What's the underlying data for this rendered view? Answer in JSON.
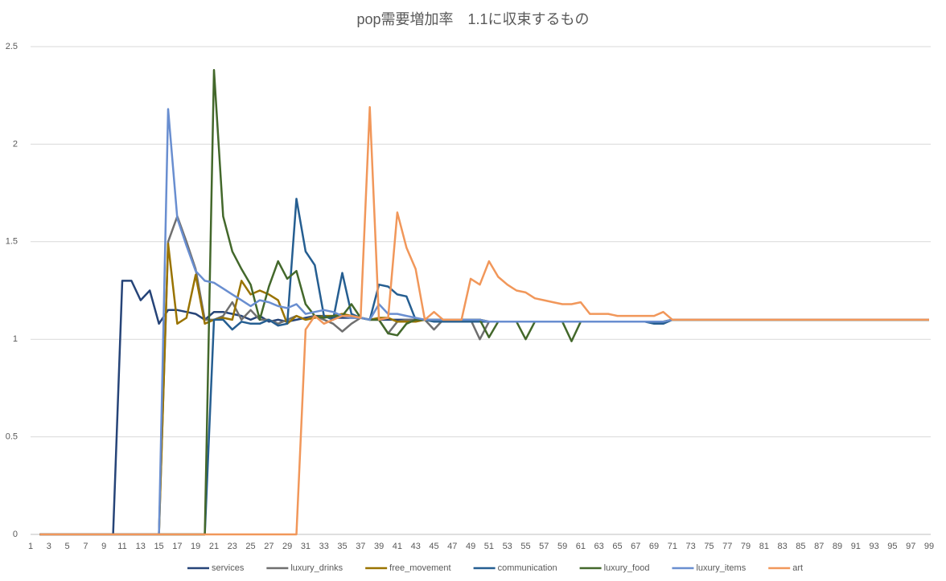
{
  "chart_data": {
    "type": "line",
    "title": "pop需要増加率　1.1に収束するもの",
    "categories": [
      1,
      null,
      3,
      null,
      5,
      null,
      7,
      null,
      9,
      null,
      11,
      null,
      13,
      null,
      15,
      null,
      17,
      null,
      19,
      null,
      21,
      null,
      23,
      null,
      25,
      null,
      27,
      null,
      29,
      null,
      31,
      null,
      33,
      null,
      35,
      null,
      37,
      null,
      39,
      null,
      41,
      null,
      43,
      null,
      45,
      null,
      47,
      null,
      49,
      null,
      51,
      null,
      53,
      null,
      55,
      null,
      57,
      null,
      59,
      null,
      61,
      null,
      63,
      null,
      65,
      null,
      67,
      null,
      69,
      null,
      71,
      null,
      73,
      null,
      75,
      null,
      77,
      null,
      79,
      null,
      81,
      null,
      83,
      null,
      85,
      null,
      87,
      null,
      89,
      null,
      91,
      null,
      93,
      null,
      95,
      null,
      97,
      null,
      99
    ],
    "ylim": [
      0,
      2.5
    ],
    "yticks": [
      0,
      0.5,
      1,
      1.5,
      2,
      2.5
    ],
    "grid": true,
    "legend": "bottom",
    "series": [
      {
        "name": "services",
        "color": "#264478",
        "values": [
          null,
          0,
          0,
          0,
          0,
          0,
          0,
          0,
          0,
          0,
          1.3,
          1.3,
          1.2,
          1.25,
          1.08,
          1.15,
          1.15,
          1.14,
          1.13,
          1.1,
          1.14,
          1.14,
          1.13,
          1.12,
          1.1,
          1.12,
          1.09,
          1.1,
          1.09,
          1.1,
          1.11,
          1.12,
          1.12,
          1.11,
          1.11,
          1.11,
          1.11,
          1.1,
          1.1,
          1.1,
          1.1,
          1.1,
          1.1,
          1.1,
          1.1,
          1.1,
          1.1,
          1.1,
          1.1,
          1.1,
          1.09,
          1.09,
          1.09,
          1.09,
          1.09,
          1.09,
          1.09,
          1.09,
          1.09,
          1.09,
          1.09,
          1.09,
          1.09,
          1.09,
          1.09,
          1.09,
          1.09,
          1.09,
          1.09,
          1.09,
          1.1,
          1.1,
          1.1,
          1.1,
          1.1,
          1.1,
          1.1,
          1.1,
          1.1,
          1.1,
          1.1,
          1.1,
          1.1,
          1.1,
          1.1,
          1.1,
          1.1,
          1.1,
          1.1,
          1.1,
          1.1,
          1.1,
          1.1,
          1.1,
          1.1,
          1.1,
          1.1,
          1.1,
          1.1
        ]
      },
      {
        "name": "luxury_drinks",
        "color": "#6f6f6f",
        "values": [
          null,
          0,
          0,
          0,
          0,
          0,
          0,
          0,
          0,
          0,
          0,
          0,
          0,
          0,
          0,
          1.5,
          1.63,
          1.5,
          1.36,
          1.1,
          1.1,
          1.12,
          1.19,
          1.1,
          1.15,
          1.1,
          1.1,
          1.08,
          1.1,
          1.12,
          1.1,
          1.12,
          1.1,
          1.08,
          1.04,
          1.08,
          1.11,
          1.1,
          1.1,
          1.03,
          1.09,
          1.1,
          1.1,
          1.1,
          1.05,
          1.1,
          1.1,
          1.1,
          1.1,
          1.0,
          1.09,
          1.09,
          1.09,
          1.09,
          1.09,
          1.09,
          1.09,
          1.09,
          1.09,
          1.09,
          1.09,
          1.09,
          1.09,
          1.09,
          1.09,
          1.09,
          1.09,
          1.09,
          1.09,
          1.09,
          1.1,
          1.1,
          1.1,
          1.1,
          1.1,
          1.1,
          1.1,
          1.1,
          1.1,
          1.1,
          1.1,
          1.1,
          1.1,
          1.1,
          1.1,
          1.1,
          1.1,
          1.1,
          1.1,
          1.1,
          1.1,
          1.1,
          1.1,
          1.1,
          1.1,
          1.1,
          1.1,
          1.1,
          1.1
        ]
      },
      {
        "name": "free_movement",
        "color": "#997300",
        "values": [
          null,
          0,
          0,
          0,
          0,
          0,
          0,
          0,
          0,
          0,
          0,
          0,
          0,
          0,
          0,
          1.49,
          1.08,
          1.11,
          1.33,
          1.08,
          1.1,
          1.11,
          1.1,
          1.3,
          1.23,
          1.25,
          1.23,
          1.2,
          1.08,
          1.12,
          1.1,
          1.11,
          1.12,
          1.12,
          1.13,
          1.12,
          1.11,
          1.1,
          1.11,
          1.11,
          1.09,
          1.09,
          1.09,
          1.1,
          1.1,
          1.1,
          1.1,
          1.1,
          1.1,
          1.1,
          1.09,
          1.09,
          1.09,
          1.09,
          1.09,
          1.09,
          1.09,
          1.09,
          1.09,
          1.09,
          1.09,
          1.09,
          1.09,
          1.09,
          1.09,
          1.09,
          1.09,
          1.09,
          1.09,
          1.09,
          1.1,
          1.1,
          1.1,
          1.1,
          1.1,
          1.1,
          1.1,
          1.1,
          1.1,
          1.1,
          1.1,
          1.1,
          1.1,
          1.1,
          1.1,
          1.1,
          1.1,
          1.1,
          1.1,
          1.1,
          1.1,
          1.1,
          1.1,
          1.1,
          1.1,
          1.1,
          1.1,
          1.1,
          1.1
        ]
      },
      {
        "name": "communication",
        "color": "#255e91",
        "values": [
          null,
          0,
          0,
          0,
          0,
          0,
          0,
          0,
          0,
          0,
          0,
          0,
          0,
          0,
          0,
          0,
          0,
          0,
          0,
          0,
          1.1,
          1.1,
          1.05,
          1.09,
          1.08,
          1.08,
          1.1,
          1.07,
          1.08,
          1.72,
          1.45,
          1.38,
          1.12,
          1.1,
          1.34,
          1.13,
          1.11,
          1.1,
          1.28,
          1.27,
          1.23,
          1.22,
          1.1,
          1.1,
          1.09,
          1.09,
          1.09,
          1.09,
          1.09,
          1.09,
          1.09,
          1.09,
          1.09,
          1.09,
          1.09,
          1.09,
          1.09,
          1.09,
          1.09,
          1.09,
          1.09,
          1.09,
          1.09,
          1.09,
          1.09,
          1.09,
          1.09,
          1.09,
          1.08,
          1.08,
          1.1,
          1.1,
          1.1,
          1.1,
          1.1,
          1.1,
          1.1,
          1.1,
          1.1,
          1.1,
          1.1,
          1.1,
          1.1,
          1.1,
          1.1,
          1.1,
          1.1,
          1.1,
          1.1,
          1.1,
          1.1,
          1.1,
          1.1,
          1.1,
          1.1,
          1.1,
          1.1,
          1.1,
          1.1
        ]
      },
      {
        "name": "luxury_food",
        "color": "#43682b",
        "values": [
          null,
          0,
          0,
          0,
          0,
          0,
          0,
          0,
          0,
          0,
          0,
          0,
          0,
          0,
          0,
          0,
          0,
          0,
          0,
          0,
          2.38,
          1.63,
          1.45,
          1.36,
          1.28,
          1.1,
          1.27,
          1.4,
          1.31,
          1.35,
          1.18,
          1.12,
          1.11,
          1.12,
          1.12,
          1.18,
          1.11,
          1.1,
          1.1,
          1.03,
          1.02,
          1.08,
          1.1,
          1.1,
          1.1,
          1.1,
          1.1,
          1.1,
          1.1,
          1.1,
          1.01,
          1.09,
          1.09,
          1.09,
          1.0,
          1.09,
          1.09,
          1.09,
          1.09,
          0.99,
          1.09,
          1.09,
          1.09,
          1.09,
          1.09,
          1.09,
          1.09,
          1.09,
          1.09,
          1.09,
          1.1,
          1.1,
          1.1,
          1.1,
          1.1,
          1.1,
          1.1,
          1.1,
          1.1,
          1.1,
          1.1,
          1.1,
          1.1,
          1.1,
          1.1,
          1.1,
          1.1,
          1.1,
          1.1,
          1.1,
          1.1,
          1.1,
          1.1,
          1.1,
          1.1,
          1.1,
          1.1,
          1.1,
          1.1
        ]
      },
      {
        "name": "luxury_items",
        "color": "#698ed0",
        "values": [
          null,
          0,
          0,
          0,
          0,
          0,
          0,
          0,
          0,
          0,
          0,
          0,
          0,
          0,
          0,
          2.18,
          1.62,
          1.48,
          1.35,
          1.3,
          1.29,
          1.26,
          1.23,
          1.2,
          1.17,
          1.2,
          1.19,
          1.17,
          1.16,
          1.18,
          1.13,
          1.14,
          1.15,
          1.14,
          1.12,
          1.11,
          1.11,
          1.1,
          1.18,
          1.13,
          1.13,
          1.12,
          1.11,
          1.1,
          1.1,
          1.1,
          1.1,
          1.1,
          1.1,
          1.1,
          1.09,
          1.09,
          1.09,
          1.09,
          1.09,
          1.09,
          1.09,
          1.09,
          1.09,
          1.09,
          1.09,
          1.09,
          1.09,
          1.09,
          1.09,
          1.09,
          1.09,
          1.09,
          1.09,
          1.09,
          1.1,
          1.1,
          1.1,
          1.1,
          1.1,
          1.1,
          1.1,
          1.1,
          1.1,
          1.1,
          1.1,
          1.1,
          1.1,
          1.1,
          1.1,
          1.1,
          1.1,
          1.1,
          1.1,
          1.1,
          1.1,
          1.1,
          1.1,
          1.1,
          1.1,
          1.1,
          1.1,
          1.1,
          1.1
        ]
      },
      {
        "name": "art",
        "color": "#f1975a",
        "values": [
          null,
          0,
          0,
          0,
          0,
          0,
          0,
          0,
          0,
          0,
          0,
          0,
          0,
          0,
          0,
          0,
          0,
          0,
          0,
          0,
          0,
          0,
          0,
          0,
          0,
          0,
          0,
          0,
          0,
          0,
          1.05,
          1.12,
          1.08,
          1.1,
          1.12,
          1.12,
          1.11,
          2.19,
          1.1,
          1.11,
          1.65,
          1.47,
          1.36,
          1.1,
          1.14,
          1.1,
          1.1,
          1.1,
          1.31,
          1.28,
          1.4,
          1.32,
          1.28,
          1.25,
          1.24,
          1.21,
          1.2,
          1.19,
          1.18,
          1.18,
          1.19,
          1.13,
          1.13,
          1.13,
          1.12,
          1.12,
          1.12,
          1.12,
          1.12,
          1.14,
          1.1,
          1.1,
          1.1,
          1.1,
          1.1,
          1.1,
          1.1,
          1.1,
          1.1,
          1.1,
          1.1,
          1.1,
          1.1,
          1.1,
          1.1,
          1.1,
          1.1,
          1.1,
          1.1,
          1.1,
          1.1,
          1.1,
          1.1,
          1.1,
          1.1,
          1.1,
          1.1,
          1.1,
          1.1
        ]
      }
    ]
  }
}
